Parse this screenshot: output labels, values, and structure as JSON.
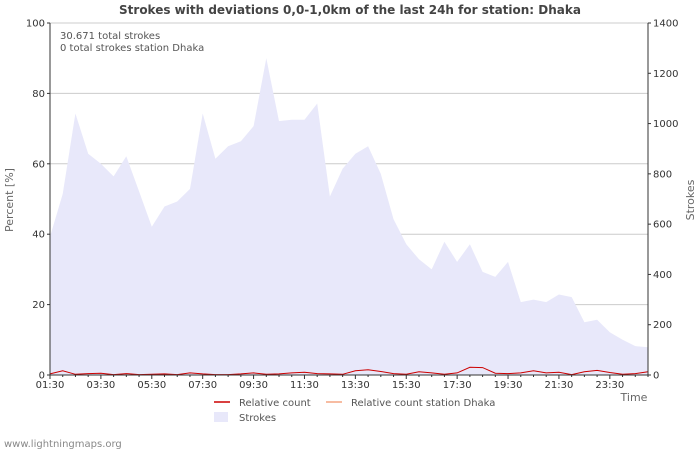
{
  "chart_data": {
    "type": "area",
    "title": "Strokes with deviations 0,0-1,0km of the last 24h for station: Dhaka",
    "xlabel": "Time",
    "ylabel_left": "Percent   [%]",
    "ylabel_right": "Strokes",
    "ylim_left": [
      0,
      100
    ],
    "ylim_right": [
      0,
      1400
    ],
    "yticks_left": [
      0,
      20,
      40,
      60,
      80,
      100
    ],
    "yticks_right": [
      0,
      200,
      400,
      600,
      800,
      1000,
      1200,
      1400
    ],
    "x_tick_labels": [
      "01:30",
      "03:30",
      "05:30",
      "07:30",
      "09:30",
      "11:30",
      "13:30",
      "15:30",
      "17:30",
      "19:30",
      "21:30",
      "23:30"
    ],
    "annotations": [
      "30.671 total strokes",
      "0 total strokes station Dhaka"
    ],
    "series": [
      {
        "name": "Strokes",
        "axis": "right",
        "color": "#e8e8fa",
        "values": [
          550,
          720,
          1040,
          880,
          840,
          790,
          870,
          730,
          590,
          670,
          690,
          740,
          1040,
          860,
          910,
          930,
          990,
          1260,
          1010,
          1015,
          1015,
          1080,
          710,
          820,
          880,
          910,
          800,
          620,
          520,
          460,
          420,
          530,
          450,
          520,
          410,
          390,
          450,
          290,
          300,
          290,
          320,
          310,
          210,
          220,
          170,
          140,
          115,
          110
        ]
      },
      {
        "name": "Relative count",
        "axis": "left",
        "color": "#cc0000",
        "values": [
          0.3,
          1.2,
          0.2,
          0.4,
          0.5,
          0.1,
          0.4,
          0.1,
          0.2,
          0.3,
          0.1,
          0.6,
          0.3,
          0.1,
          0.1,
          0.3,
          0.6,
          0.2,
          0.3,
          0.6,
          0.8,
          0.4,
          0.3,
          0.2,
          1.2,
          1.5,
          1.0,
          0.4,
          0.2,
          0.9,
          0.6,
          0.2,
          0.6,
          2.2,
          2.1,
          0.5,
          0.4,
          0.6,
          1.2,
          0.6,
          0.8,
          0.1,
          0.9,
          1.3,
          0.7,
          0.2,
          0.4,
          0.9
        ]
      },
      {
        "name": "Relative count station Dhaka",
        "axis": "left",
        "color": "#f4a582",
        "values": [
          0,
          0,
          0,
          0,
          0,
          0,
          0,
          0,
          0,
          0,
          0,
          0,
          0,
          0,
          0,
          0,
          0,
          0,
          0,
          0,
          0,
          0,
          0,
          0,
          0,
          0,
          0,
          0,
          0,
          0,
          0,
          0,
          0,
          0,
          0,
          0,
          0,
          0,
          0,
          0,
          0,
          0,
          0,
          0,
          0,
          0,
          0,
          0
        ]
      }
    ],
    "legend": [
      {
        "label": "Relative count",
        "kind": "line",
        "color": "#cc0000"
      },
      {
        "label": "Relative count station Dhaka",
        "kind": "line",
        "color": "#f4a582"
      },
      {
        "label": "Strokes",
        "kind": "area",
        "color": "#e8e8fa"
      }
    ],
    "legend_position": "bottom",
    "grid": true
  },
  "footer": "www.lightningmaps.org"
}
